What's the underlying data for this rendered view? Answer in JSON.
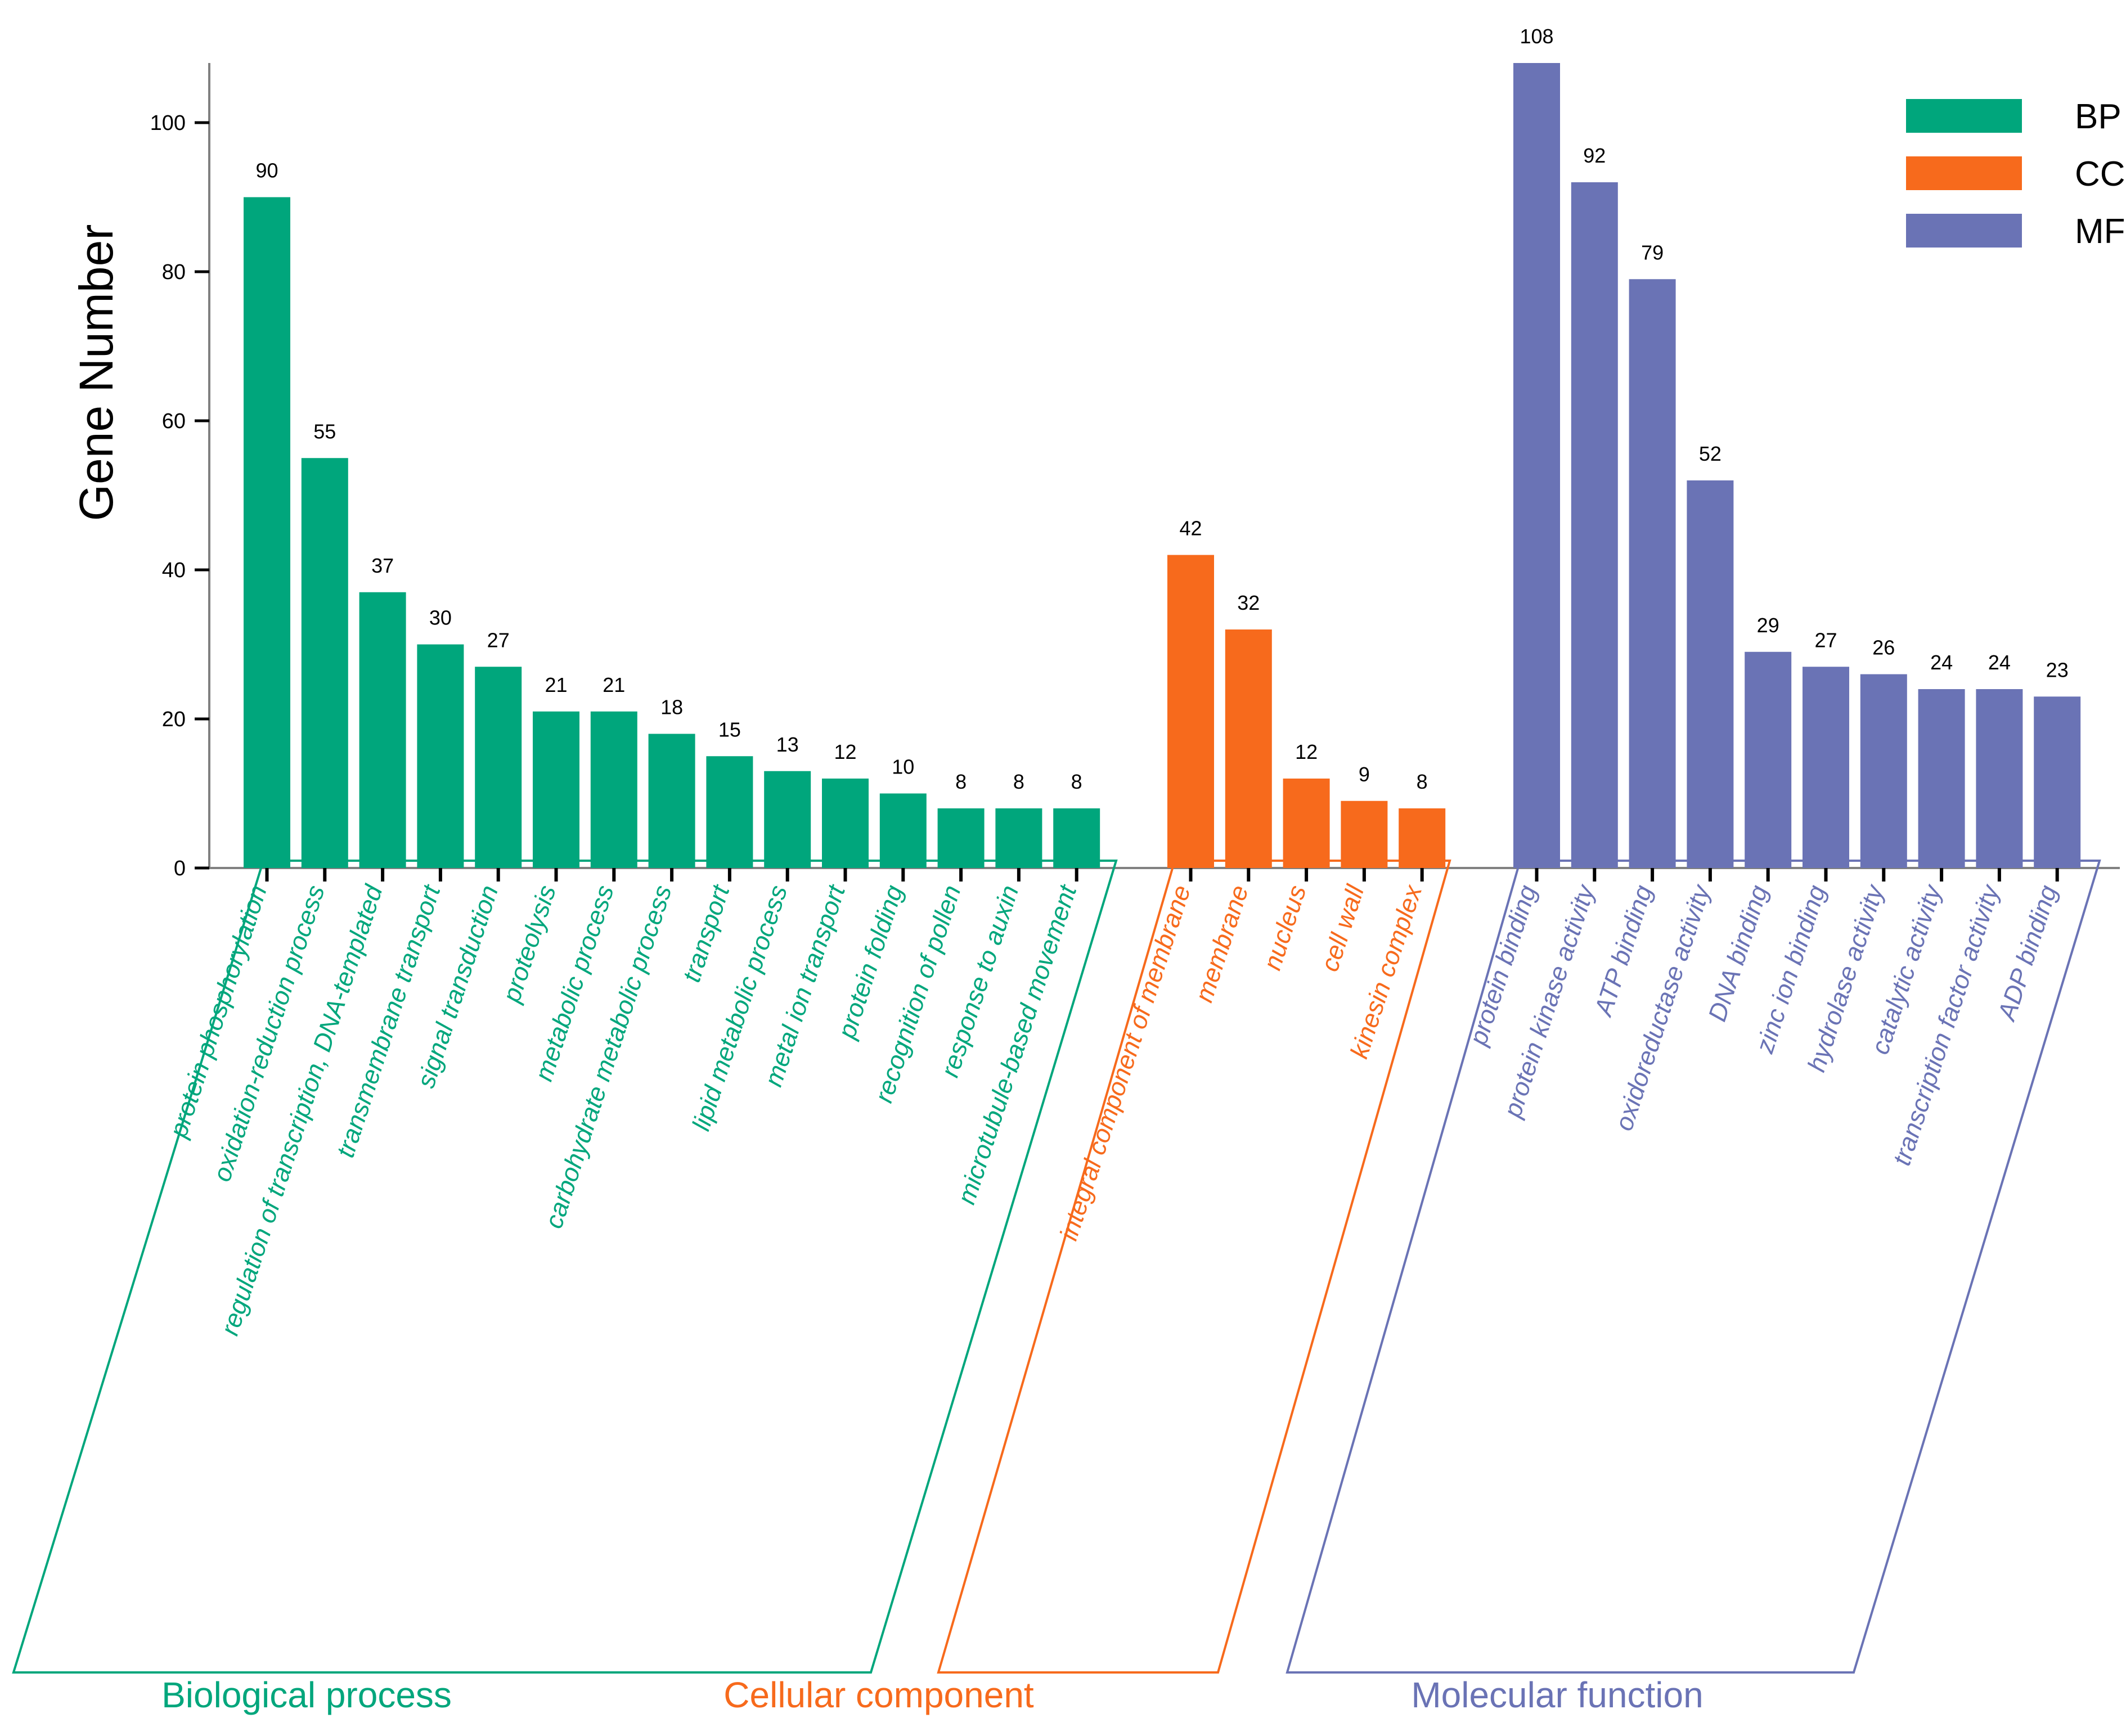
{
  "chart_data": {
    "type": "bar",
    "title": "",
    "xlabel": "",
    "ylabel": "Gene Number",
    "ylim": [
      0,
      108
    ],
    "yticks": [
      0,
      20,
      40,
      60,
      80,
      100
    ],
    "grid": false,
    "legend_position": "top-right",
    "colors": {
      "BP": "#00a67c",
      "CC": "#f76a1c",
      "MF": "#6a73b5"
    },
    "legend": [
      {
        "key": "BP",
        "label": "BP"
      },
      {
        "key": "CC",
        "label": "CC"
      },
      {
        "key": "MF",
        "label": "MF"
      }
    ],
    "groups": [
      {
        "key": "BP",
        "name": "Biological process",
        "categories": [
          "protein phosphorylation",
          "oxidation-reduction process",
          "regulation of transcription, DNA-templated",
          "transmembrane transport",
          "signal transduction",
          "proteolysis",
          "metabolic process",
          "carbohydrate metabolic process",
          "transport",
          "lipid metabolic process",
          "metal ion transport",
          "protein folding",
          "recognition of pollen",
          "response to auxin",
          "microtubule-based movement"
        ],
        "values": [
          90,
          55,
          37,
          30,
          27,
          21,
          21,
          18,
          15,
          13,
          12,
          10,
          8,
          8,
          8
        ]
      },
      {
        "key": "CC",
        "name": "Cellular component",
        "categories": [
          "integral component of membrane",
          "membrane",
          "nucleus",
          "cell wall",
          "kinesin complex"
        ],
        "values": [
          42,
          32,
          12,
          9,
          8
        ]
      },
      {
        "key": "MF",
        "name": "Molecular function",
        "categories": [
          "protein binding",
          "protein kinase activity",
          "ATP binding",
          "oxidoreductase activity",
          "DNA binding",
          "zinc ion binding",
          "hydrolase activity",
          "catalytic activity",
          "transcription factor activity",
          "ADP binding"
        ],
        "values": [
          108,
          92,
          79,
          52,
          29,
          27,
          26,
          24,
          24,
          23
        ]
      }
    ]
  }
}
